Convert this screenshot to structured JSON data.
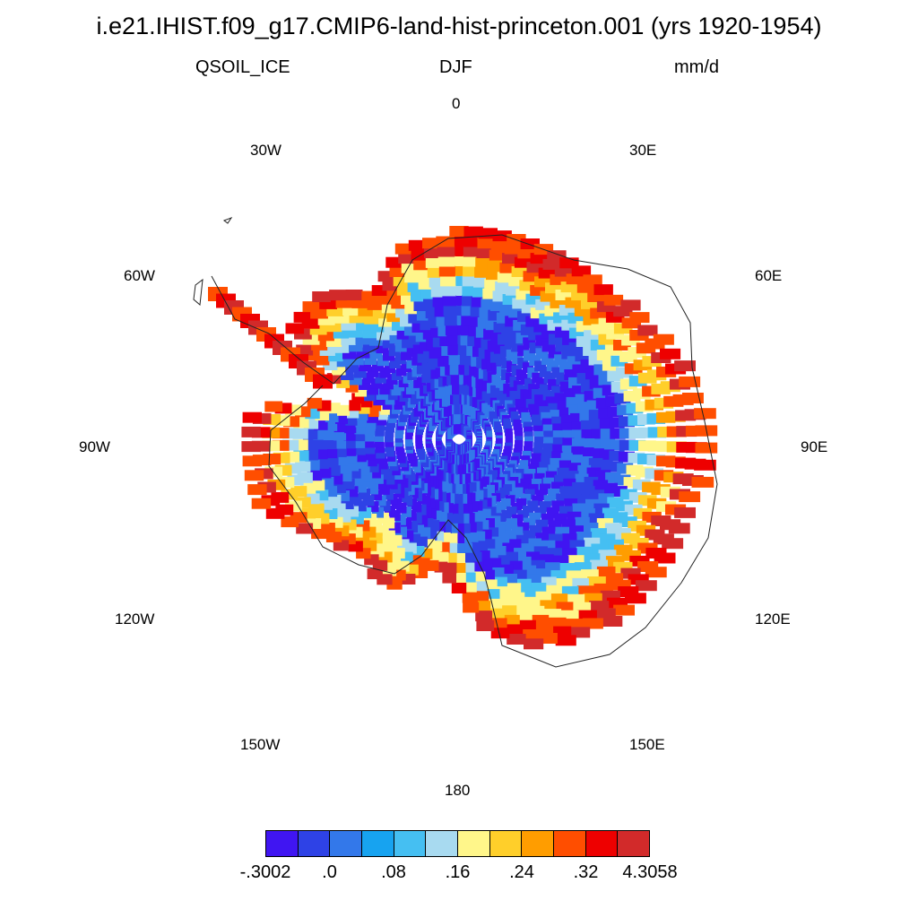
{
  "title": "i.e21.IHIST.f09_g17.CMIP6-land-hist-princeton.001 (yrs 1920-1954)",
  "variable": "QSOIL_ICE",
  "season": "DJF",
  "units": "mm/d",
  "projection": "south polar stereographic",
  "longitude_labels": {
    "lon_0": "0",
    "lon_30e": "30E",
    "lon_60e": "60E",
    "lon_90e": "90E",
    "lon_120e": "120E",
    "lon_150e": "150E",
    "lon_180": "180",
    "lon_150w": "150W",
    "lon_120w": "120W",
    "lon_90w": "90W",
    "lon_60w": "60W",
    "lon_30w": "30W"
  },
  "colorbar": {
    "colors": [
      "#4015f2",
      "#2e42e6",
      "#3378ea",
      "#17a3f0",
      "#45bff2",
      "#a8daf0",
      "#fff68a",
      "#ffcf2a",
      "#ff9d00",
      "#ff4e00",
      "#ee0000",
      "#d22a2a"
    ],
    "labels": [
      "-.3002",
      ".0",
      ".08",
      ".16",
      ".24",
      ".32",
      "4.3058"
    ]
  }
}
